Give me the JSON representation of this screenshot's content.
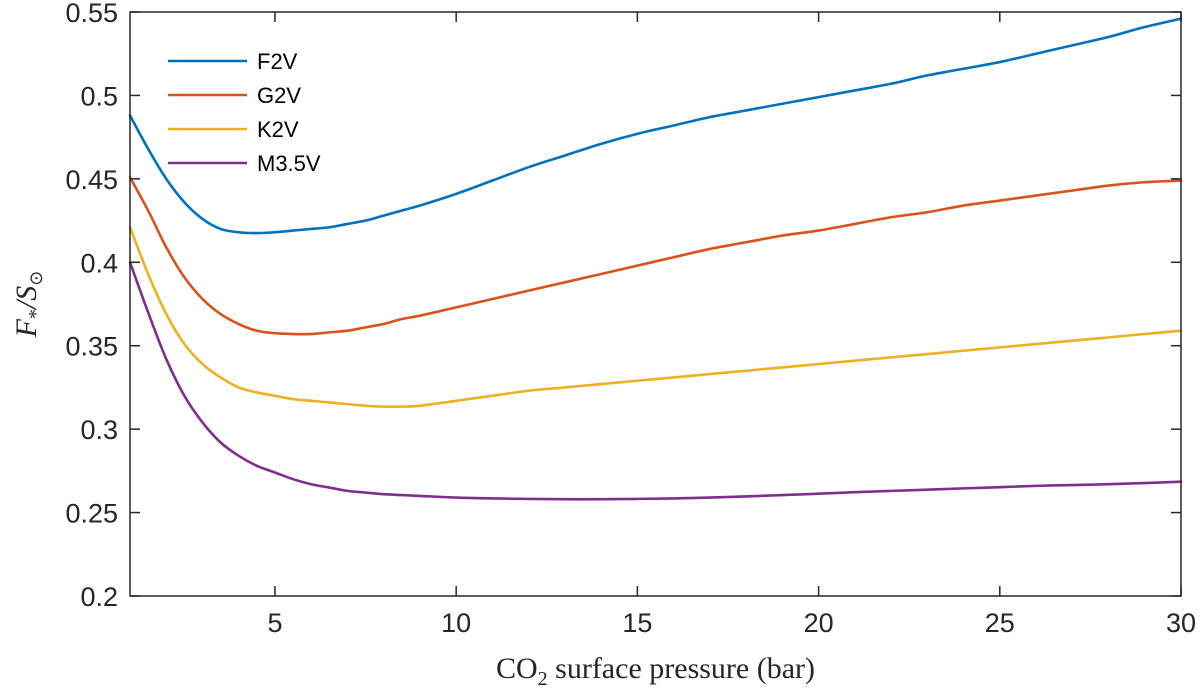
{
  "chart_data": {
    "type": "line",
    "title": "",
    "xlabel": "CO",
    "xlabel_sub": "2",
    "xlabel_rest": " surface pressure (bar)",
    "ylabel": "F",
    "ylabel_sub": "*",
    "ylabel_mid": "/S",
    "ylabel_sub2": "⊙",
    "xlim": [
      1,
      30
    ],
    "ylim": [
      0.2,
      0.55
    ],
    "xticks": [
      5,
      10,
      15,
      20,
      25,
      30
    ],
    "xtick_labels": [
      "5",
      "10",
      "15",
      "20",
      "25",
      "30"
    ],
    "yticks": [
      0.2,
      0.25,
      0.3,
      0.35,
      0.4,
      0.45,
      0.5,
      0.55
    ],
    "ytick_labels": [
      "0.2",
      "0.25",
      "0.3",
      "0.35",
      "0.4",
      "0.45",
      "0.5",
      "0.55"
    ],
    "grid": false,
    "legend_position": "top-left",
    "x": [
      1,
      1.5,
      2,
      2.5,
      3,
      3.5,
      4,
      4.5,
      5,
      5.5,
      6,
      6.5,
      7,
      7.5,
      8,
      8.5,
      9,
      10,
      11,
      12,
      13,
      14,
      15,
      16,
      17,
      18,
      19,
      20,
      21,
      22,
      23,
      24,
      25,
      26,
      27,
      28,
      29,
      30
    ],
    "series": [
      {
        "name": "F2V",
        "color": "#0072BD",
        "values": [
          0.488,
          0.468,
          0.45,
          0.436,
          0.426,
          0.42,
          0.418,
          0.4175,
          0.418,
          0.419,
          0.42,
          0.421,
          0.423,
          0.425,
          0.428,
          0.431,
          0.434,
          0.441,
          0.449,
          0.457,
          0.464,
          0.471,
          0.477,
          0.482,
          0.487,
          0.491,
          0.495,
          0.499,
          0.503,
          0.507,
          0.512,
          0.516,
          0.52,
          0.525,
          0.53,
          0.535,
          0.541,
          0.546
        ]
      },
      {
        "name": "G2V",
        "color": "#D95319",
        "values": [
          0.451,
          0.431,
          0.409,
          0.391,
          0.378,
          0.369,
          0.363,
          0.359,
          0.3575,
          0.357,
          0.357,
          0.358,
          0.359,
          0.361,
          0.363,
          0.366,
          0.368,
          0.373,
          0.378,
          0.383,
          0.388,
          0.393,
          0.398,
          0.403,
          0.408,
          0.412,
          0.416,
          0.419,
          0.423,
          0.427,
          0.43,
          0.434,
          0.437,
          0.44,
          0.443,
          0.446,
          0.448,
          0.449
        ]
      },
      {
        "name": "K2V",
        "color": "#EDB120",
        "values": [
          0.421,
          0.393,
          0.369,
          0.351,
          0.339,
          0.331,
          0.325,
          0.322,
          0.32,
          0.318,
          0.317,
          0.316,
          0.315,
          0.314,
          0.3135,
          0.3135,
          0.314,
          0.317,
          0.32,
          0.323,
          0.325,
          0.327,
          0.329,
          0.331,
          0.333,
          0.335,
          0.337,
          0.339,
          0.341,
          0.343,
          0.345,
          0.347,
          0.349,
          0.351,
          0.353,
          0.355,
          0.357,
          0.359
        ]
      },
      {
        "name": "M3.5V",
        "color": "#7E2F8E",
        "values": [
          0.4,
          0.37,
          0.342,
          0.32,
          0.304,
          0.292,
          0.284,
          0.278,
          0.274,
          0.27,
          0.267,
          0.265,
          0.263,
          0.262,
          0.261,
          0.2605,
          0.26,
          0.259,
          0.2585,
          0.2582,
          0.258,
          0.258,
          0.2582,
          0.2585,
          0.259,
          0.2597,
          0.2605,
          0.2613,
          0.2622,
          0.263,
          0.2637,
          0.2645,
          0.2652,
          0.266,
          0.2665,
          0.267,
          0.2677,
          0.2685
        ]
      }
    ]
  }
}
